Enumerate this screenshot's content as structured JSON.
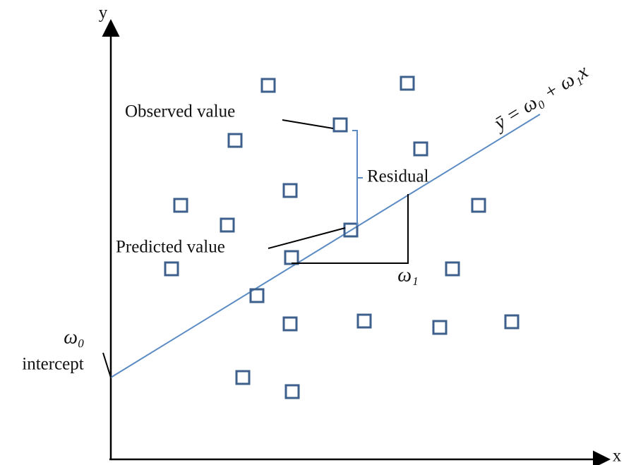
{
  "axes": {
    "y": "y",
    "x": "x"
  },
  "labels": {
    "observed": "Observed value",
    "residual": "Residual",
    "predicted": "Predicted value",
    "slope": "ω₁",
    "intercept_symbol": "ω₀",
    "intercept": "intercept",
    "equation": "ȳ = ω₀ + ω₁x"
  }
}
